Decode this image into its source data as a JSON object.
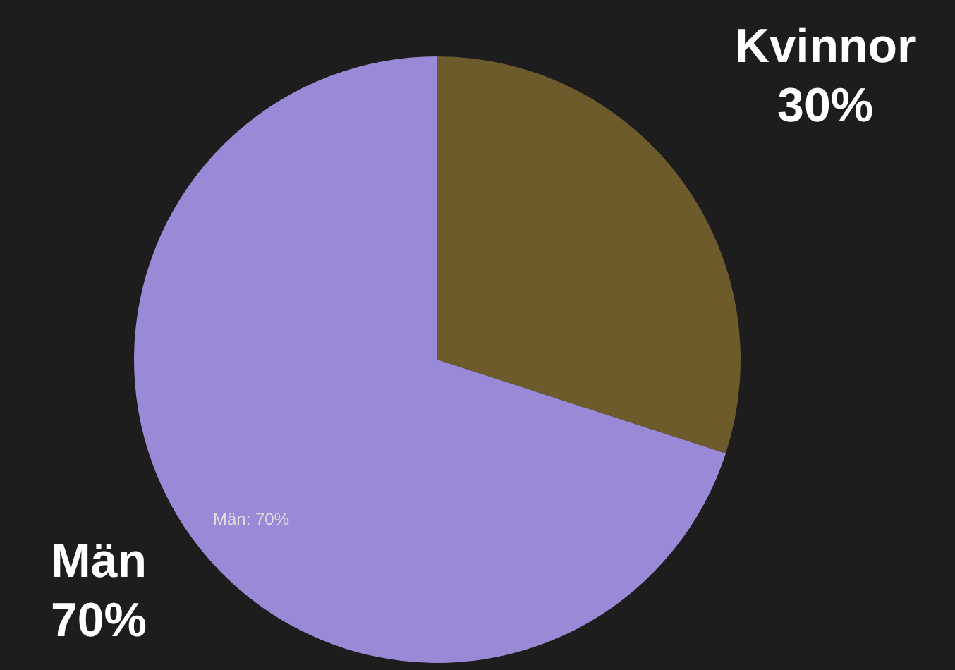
{
  "chart_data": {
    "type": "pie",
    "categories": [
      "Kvinnor",
      "Män"
    ],
    "values": [
      30,
      70
    ],
    "colors": [
      "#6e5b2c",
      "#9a89d6"
    ],
    "value_labels": [
      "30%",
      "70%"
    ],
    "annotations": [
      "Män: 70%"
    ],
    "legend": false
  }
}
